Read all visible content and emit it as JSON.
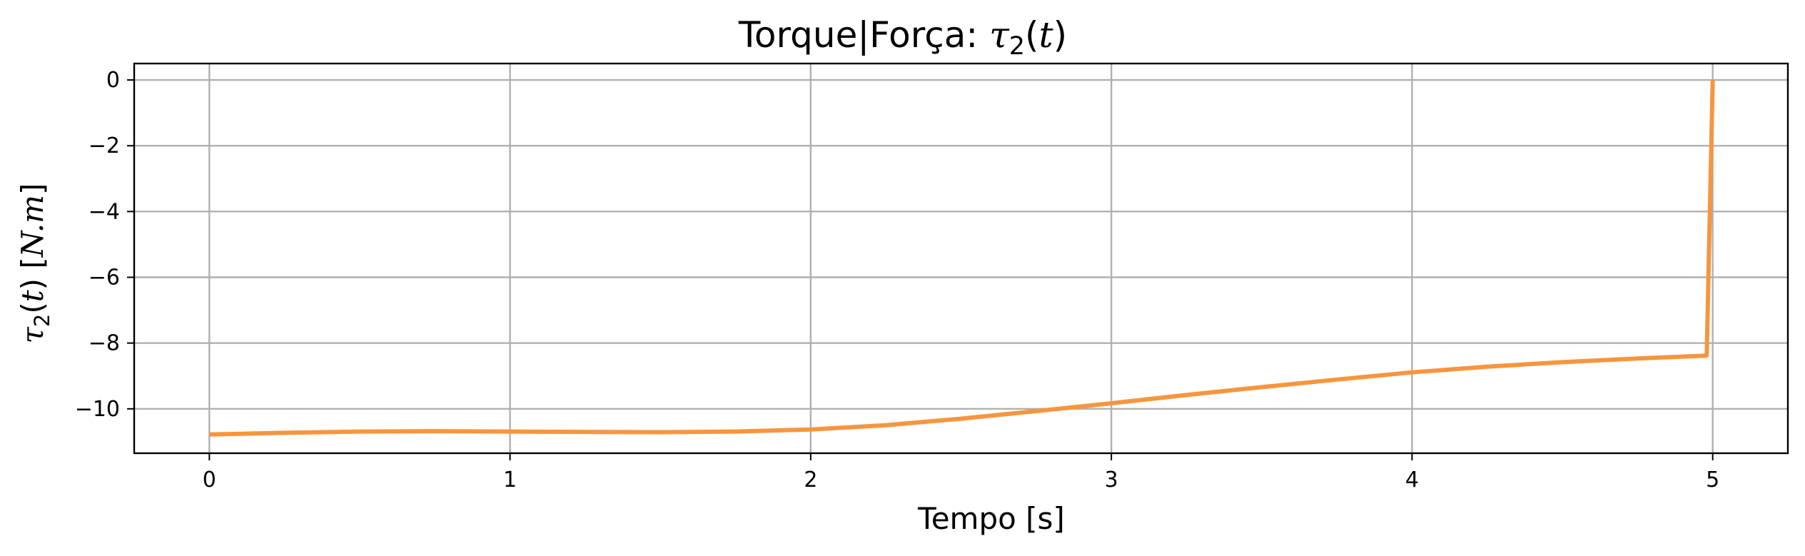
{
  "chart_data": {
    "type": "line",
    "title": {
      "prefix": "Torque|Força: ",
      "symbol": "τ",
      "subscript": "2",
      "open": "(",
      "var": "t",
      "close": ")"
    },
    "xlabel": "Tempo [s]",
    "ylabel": {
      "symbol": "τ",
      "subscript": "2",
      "open": "(",
      "var": "t",
      "close": ") [",
      "unit": "N.m",
      "end": "]"
    },
    "xlim": [
      -0.25,
      5.25
    ],
    "ylim": [
      -11.35,
      0.5
    ],
    "xticks": [
      0,
      1,
      2,
      3,
      4,
      5
    ],
    "xtick_labels": [
      "0",
      "1",
      "2",
      "3",
      "4",
      "5"
    ],
    "yticks": [
      0,
      -2,
      -4,
      -6,
      -8,
      -10
    ],
    "ytick_labels": [
      "0",
      "−2",
      "−4",
      "−6",
      "−8",
      "−10"
    ],
    "grid": true,
    "series": [
      {
        "color": "#f7953e",
        "x": [
          0,
          0.25,
          0.5,
          0.75,
          1.0,
          1.25,
          1.5,
          1.75,
          2.0,
          2.25,
          2.5,
          2.75,
          3.0,
          3.25,
          3.5,
          3.75,
          4.0,
          4.25,
          4.5,
          4.75,
          4.98,
          5.0
        ],
        "y": [
          -10.78,
          -10.73,
          -10.69,
          -10.68,
          -10.69,
          -10.7,
          -10.71,
          -10.69,
          -10.63,
          -10.5,
          -10.3,
          -10.07,
          -9.83,
          -9.58,
          -9.34,
          -9.11,
          -8.89,
          -8.72,
          -8.58,
          -8.47,
          -8.38,
          0.0
        ]
      }
    ]
  }
}
